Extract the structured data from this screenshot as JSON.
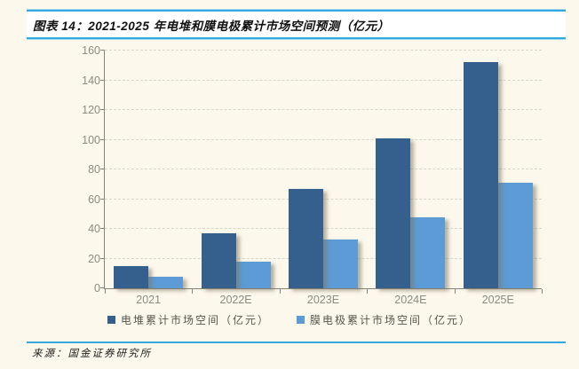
{
  "header": {
    "title": "图表 14：2021-2025 年电堆和膜电极累计市场空间预测（亿元）"
  },
  "footer": {
    "source": "来源：国金证券研究所"
  },
  "colors": {
    "background": "#FCF8EC",
    "title_rule": "#35A7DF",
    "stack_bar": "#355F8D",
    "membrane_bar": "#5C9BD5",
    "axis": "#85857D",
    "gridline": "#D6D6CC",
    "tick_label": "#8B8B82",
    "legend_text": "#57574E"
  },
  "chart_data": {
    "type": "bar",
    "title": "2021-2025 年电堆和膜电极累计市场空间预测（亿元）",
    "categories": [
      "2021",
      "2022E",
      "2023E",
      "2024E",
      "2025E"
    ],
    "series": [
      {
        "name": "电堆累计市场空间（亿元）",
        "color": "#355F8D",
        "values": [
          15,
          37,
          67,
          101,
          152
        ]
      },
      {
        "name": "膜电极累计市场空间（亿元）",
        "color": "#5C9BD5",
        "values": [
          7.5,
          18,
          33,
          48,
          71
        ]
      }
    ],
    "xlabel": "",
    "ylabel": "",
    "ylim": [
      0,
      160
    ],
    "ytick_step": 20,
    "grid": "horizontal-dashed",
    "legend_position": "bottom"
  }
}
